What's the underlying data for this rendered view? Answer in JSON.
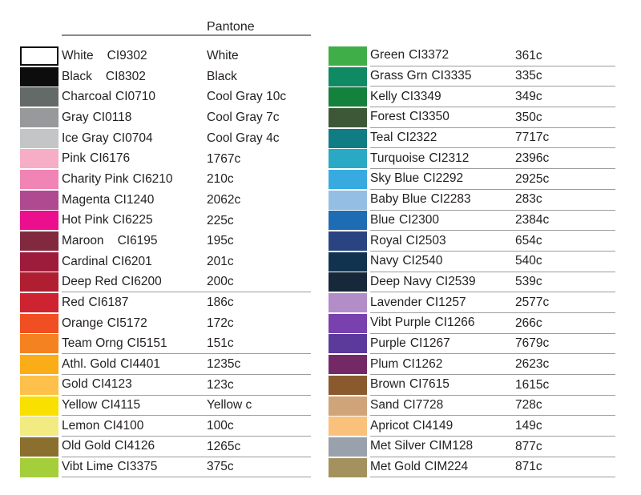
{
  "header": {
    "pantone_label": "Pantone"
  },
  "style_colors": {
    "text": "#231f20",
    "row_line": "#9c9c9c",
    "header_line": "#8a8a8a",
    "white_swatch_border": "#0d0d0d"
  },
  "chart_data": {
    "type": "table",
    "title": "Pantone",
    "columns": [
      "swatch",
      "color name + CI code",
      "Pantone"
    ],
    "groups": [
      {
        "id": "left",
        "rows": [
          {
            "name": "White",
            "code": "CI9302",
            "pantone": "White",
            "hex": "#ffffff",
            "underline": false,
            "bordered": true,
            "wide_gap": true
          },
          {
            "name": "Black",
            "code": "CI8302",
            "pantone": "Black",
            "hex": "#0d0d0d",
            "underline": false,
            "bordered": false,
            "wide_gap": true
          },
          {
            "name": "Charcoal",
            "code": "CI0710",
            "pantone": "Cool Gray 10c",
            "hex": "#646a68",
            "underline": false,
            "bordered": false,
            "wide_gap": false
          },
          {
            "name": "Gray",
            "code": "CI0118",
            "pantone": "Cool Gray 7c",
            "hex": "#97999b",
            "underline": false,
            "bordered": false,
            "wide_gap": false
          },
          {
            "name": "Ice Gray",
            "code": "CI0704",
            "pantone": "Cool Gray 4c",
            "hex": "#c3c5c7",
            "underline": false,
            "bordered": false,
            "wide_gap": false
          },
          {
            "name": "Pink",
            "code": "CI6176",
            "pantone": "1767c",
            "hex": "#f5aec5",
            "underline": false,
            "bordered": false,
            "wide_gap": false
          },
          {
            "name": "Charity Pink",
            "code": "CI6210",
            "pantone": "210c",
            "hex": "#f084b5",
            "underline": false,
            "bordered": false,
            "wide_gap": false
          },
          {
            "name": "Magenta",
            "code": "CI1240",
            "pantone": "2062c",
            "hex": "#b04a90",
            "underline": false,
            "bordered": false,
            "wide_gap": false
          },
          {
            "name": "Hot Pink",
            "code": "CI6225",
            "pantone": "225c",
            "hex": "#ec0f8d",
            "underline": false,
            "bordered": false,
            "wide_gap": false
          },
          {
            "name": "Maroon",
            "code": "CI6195",
            "pantone": "195c",
            "hex": "#812a3f",
            "underline": false,
            "bordered": false,
            "wide_gap": true
          },
          {
            "name": "Cardinal",
            "code": "CI6201",
            "pantone": "201c",
            "hex": "#9e1c3b",
            "underline": false,
            "bordered": false,
            "wide_gap": false
          },
          {
            "name": "Deep Red",
            "code": "CI6200",
            "pantone": "200c",
            "hex": "#b01f31",
            "underline": true,
            "bordered": false,
            "wide_gap": false
          },
          {
            "name": "Red",
            "code": "CI6187",
            "pantone": "186c",
            "hex": "#ce2331",
            "underline": false,
            "bordered": false,
            "wide_gap": false
          },
          {
            "name": "Orange",
            "code": "CI5172",
            "pantone": "172c",
            "hex": "#f04e23",
            "underline": false,
            "bordered": false,
            "wide_gap": false
          },
          {
            "name": "Team Orng",
            "code": "CI5151",
            "pantone": "151c",
            "hex": "#f58220",
            "underline": true,
            "bordered": false,
            "wide_gap": false
          },
          {
            "name": "Athl. Gold",
            "code": "CI4401",
            "pantone": "1235c",
            "hex": "#fbad18",
            "underline": true,
            "bordered": false,
            "wide_gap": false
          },
          {
            "name": "Gold",
            "code": "CI4123",
            "pantone": "123c",
            "hex": "#fdc04b",
            "underline": true,
            "bordered": false,
            "wide_gap": false
          },
          {
            "name": "Yellow",
            "code": "CI4115",
            "pantone": "Yellow c",
            "hex": "#f9e000",
            "underline": true,
            "bordered": false,
            "wide_gap": false
          },
          {
            "name": "Lemon",
            "code": "CI4100",
            "pantone": "100c",
            "hex": "#f2eb81",
            "underline": true,
            "bordered": false,
            "wide_gap": false
          },
          {
            "name": "Old Gold",
            "code": "CI4126",
            "pantone": "1265c",
            "hex": "#8b6f2e",
            "underline": true,
            "bordered": false,
            "wide_gap": false
          },
          {
            "name": "Vibt Lime",
            "code": "CI3375",
            "pantone": "375c",
            "hex": "#a4ce3a",
            "underline": true,
            "bordered": false,
            "wide_gap": false
          }
        ]
      },
      {
        "id": "right",
        "rows": [
          {
            "name": "Green",
            "code": "CI3372",
            "pantone": "361c",
            "hex": "#3fae49",
            "underline": true,
            "bordered": false,
            "wide_gap": false
          },
          {
            "name": "Grass Grn",
            "code": "CI3335",
            "pantone": "335c",
            "hex": "#108a62",
            "underline": true,
            "bordered": false,
            "wide_gap": false
          },
          {
            "name": "Kelly",
            "code": "CI3349",
            "pantone": "349c",
            "hex": "#14813c",
            "underline": true,
            "bordered": false,
            "wide_gap": false
          },
          {
            "name": "Forest",
            "code": "CI3350",
            "pantone": "350c",
            "hex": "#3d5836",
            "underline": true,
            "bordered": false,
            "wide_gap": false
          },
          {
            "name": "Teal",
            "code": "CI2322",
            "pantone": "7717c",
            "hex": "#107c84",
            "underline": true,
            "bordered": false,
            "wide_gap": false
          },
          {
            "name": "Turquoise",
            "code": "CI2312",
            "pantone": "2396c",
            "hex": "#2aa9c4",
            "underline": true,
            "bordered": false,
            "wide_gap": false
          },
          {
            "name": "Sky Blue",
            "code": "CI2292",
            "pantone": "2925c",
            "hex": "#37abe0",
            "underline": true,
            "bordered": false,
            "wide_gap": false
          },
          {
            "name": "Baby Blue",
            "code": "CI2283",
            "pantone": "283c",
            "hex": "#95bee5",
            "underline": true,
            "bordered": false,
            "wide_gap": false
          },
          {
            "name": "Blue",
            "code": "CI2300",
            "pantone": "2384c",
            "hex": "#1d6cb4",
            "underline": true,
            "bordered": false,
            "wide_gap": false
          },
          {
            "name": "Royal",
            "code": "CI2503",
            "pantone": "654c",
            "hex": "#2a4381",
            "underline": true,
            "bordered": false,
            "wide_gap": false
          },
          {
            "name": "Navy",
            "code": "CI2540",
            "pantone": "540c",
            "hex": "#12334f",
            "underline": true,
            "bordered": false,
            "wide_gap": false
          },
          {
            "name": "Deep Navy",
            "code": "CI2539",
            "pantone": "539c",
            "hex": "#16283a",
            "underline": true,
            "bordered": false,
            "wide_gap": false
          },
          {
            "name": "Lavender",
            "code": "CI1257",
            "pantone": "2577c",
            "hex": "#b28dc8",
            "underline": true,
            "bordered": false,
            "wide_gap": false
          },
          {
            "name": "Vibt Purple",
            "code": "CI1266",
            "pantone": "266c",
            "hex": "#7841ae",
            "underline": true,
            "bordered": false,
            "wide_gap": false
          },
          {
            "name": "Purple",
            "code": "CI1267",
            "pantone": "7679c",
            "hex": "#5b3a9c",
            "underline": true,
            "bordered": false,
            "wide_gap": false
          },
          {
            "name": "Plum",
            "code": "CI1262",
            "pantone": "2623c",
            "hex": "#742967",
            "underline": true,
            "bordered": false,
            "wide_gap": false
          },
          {
            "name": "Brown",
            "code": "CI7615",
            "pantone": "1615c",
            "hex": "#8a5a2e",
            "underline": true,
            "bordered": false,
            "wide_gap": false
          },
          {
            "name": "Sand",
            "code": "CI7728",
            "pantone": "728c",
            "hex": "#cfa478",
            "underline": true,
            "bordered": false,
            "wide_gap": false
          },
          {
            "name": "Apricot",
            "code": "CI4149",
            "pantone": "149c",
            "hex": "#fac17d",
            "underline": true,
            "bordered": false,
            "wide_gap": false
          },
          {
            "name": "Met Silver",
            "code": "CIM128",
            "pantone": "877c",
            "hex": "#99a1ac",
            "underline": true,
            "bordered": false,
            "wide_gap": false
          },
          {
            "name": "Met Gold",
            "code": "CIM224",
            "pantone": "871c",
            "hex": "#a3925e",
            "underline": true,
            "bordered": false,
            "wide_gap": false
          }
        ]
      }
    ]
  }
}
